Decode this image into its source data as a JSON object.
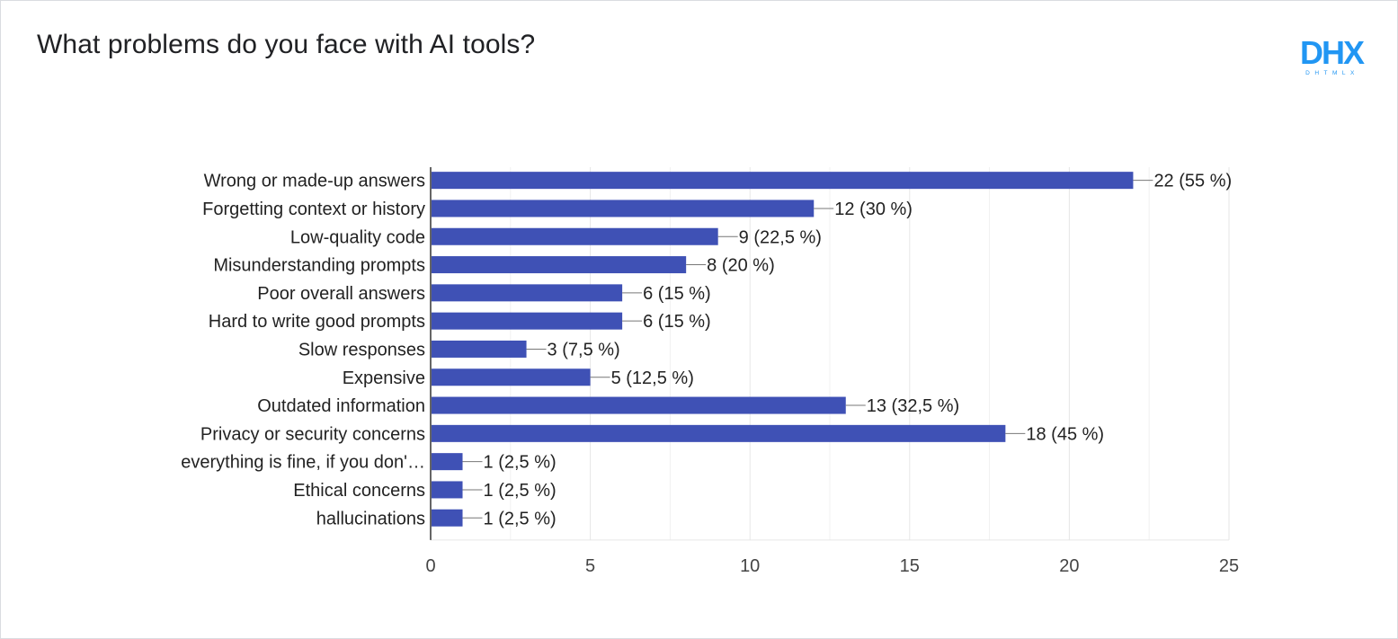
{
  "logo": {
    "text": "DHX",
    "subtext": "DHTMLX",
    "color": "#2196f3"
  },
  "chart_data": {
    "type": "bar",
    "orientation": "horizontal",
    "title": "What problems do you face with AI tools?",
    "xlabel": "",
    "ylabel": "",
    "xlim": [
      0,
      25
    ],
    "xticks": [
      0,
      5,
      10,
      15,
      20,
      25
    ],
    "grid": true,
    "bar_color": "#3f51b5",
    "categories": [
      "Wrong or made-up answers",
      "Forgetting context or history",
      "Low-quality code",
      "Misunderstanding prompts",
      "Poor overall answers",
      "Hard to write good prompts",
      "Slow responses",
      "Expensive",
      "Outdated information",
      "Privacy or security concerns",
      "everything is fine, if you don'…",
      "Ethical concerns",
      "hallucinations"
    ],
    "values": [
      22,
      12,
      9,
      8,
      6,
      6,
      3,
      5,
      13,
      18,
      1,
      1,
      1
    ],
    "data_labels": [
      "22 (55 %)",
      "12 (30 %)",
      "9 (22,5 %)",
      "8 (20 %)",
      "6 (15 %)",
      "6 (15 %)",
      "3 (7,5 %)",
      "5 (12,5 %)",
      "13 (32,5 %)",
      "18 (45 %)",
      "1 (2,5 %)",
      "1 (2,5 %)",
      "1 (2,5 %)"
    ]
  }
}
